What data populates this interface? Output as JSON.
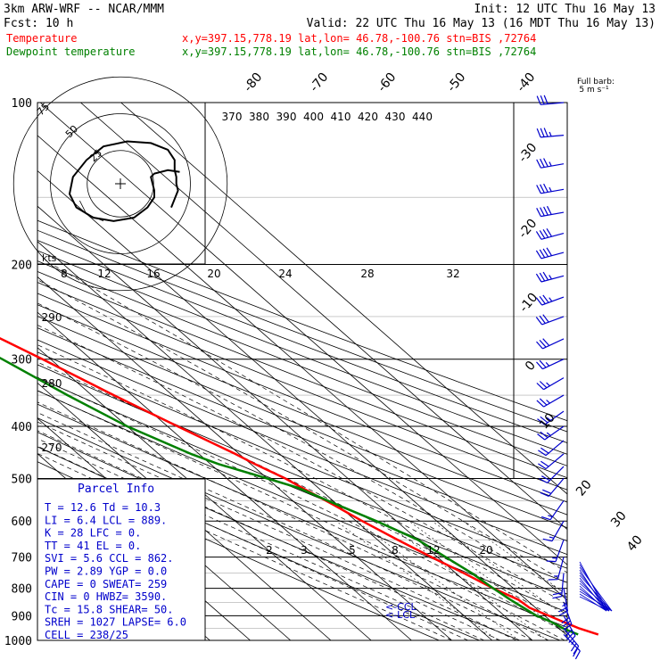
{
  "header": {
    "model": "3km ARW-WRF -- NCAR/MMM",
    "init": "Init: 12 UTC Thu 16 May 13",
    "fcst": "Fcst:    10 h",
    "valid": "Valid: 22 UTC Thu 16 May 13 (16 MDT Thu 16 May 13)",
    "lines": [
      {
        "name": "Temperature",
        "coords": "x,y=397.15,778.19   lat,lon= 46.78,-100.76   stn=BIS ,72764",
        "color": "#ff0000"
      },
      {
        "name": "Dewpoint temperature",
        "coords": "x,y=397.15,778.19   lat,lon= 46.78,-100.76   stn=BIS ,72764",
        "color": "#008000"
      }
    ]
  },
  "wind_barb_label": [
    "Full barb:",
    "5 m s⁻¹"
  ],
  "hodograph": {
    "ring_labels": [
      "75",
      "50",
      "25"
    ],
    "units": "kts",
    "path_uv": [
      [
        17.5,
        3.5
      ],
      [
        14,
        4
      ],
      [
        10,
        3
      ],
      [
        9,
        2
      ],
      [
        9.5,
        0
      ],
      [
        10,
        -2
      ],
      [
        10,
        -4
      ],
      [
        8,
        -7
      ],
      [
        4,
        -10
      ],
      [
        -2,
        -11
      ],
      [
        -8,
        -10
      ],
      [
        -13,
        -7
      ],
      [
        -15,
        -3
      ],
      [
        -14,
        2
      ],
      [
        -10,
        7
      ],
      [
        -5,
        11
      ],
      [
        2,
        12.5
      ],
      [
        9,
        12
      ],
      [
        14,
        10
      ],
      [
        16,
        7
      ],
      [
        16,
        4
      ],
      [
        16.5,
        2
      ],
      [
        16.5,
        0
      ],
      [
        17,
        -2
      ],
      [
        15,
        -7
      ]
    ],
    "inner_path_uv": [
      [
        -12,
        -5
      ],
      [
        -10,
        -9
      ],
      [
        -5,
        -11
      ]
    ]
  },
  "parcel_info": {
    "title": "Parcel Info",
    "rows": [
      [
        "T  =   12.6 Td =  10.3"
      ],
      [
        "LI =    6.4 LCL =  889."
      ],
      [
        "K  =     28 LFC =    0."
      ],
      [
        "TT =     41 EL  =    0."
      ],
      [
        "SVI =   5.6 CCL =  862."
      ],
      [
        "PW =   2.89 YGP =   0.0"
      ],
      [
        "CAPE =    0 SWEAT=  259"
      ],
      [
        "CIN  =    0 HWBZ= 3590."
      ],
      [
        "Tc  =  15.8 SHEAR=  50."
      ],
      [
        "SREH = 1027 LAPSE=  6.0"
      ],
      [
        "CELL = 238/25"
      ]
    ]
  },
  "annotations": {
    "ccl": "<-CCL",
    "lcl": "<-LCL"
  },
  "chart_data": {
    "type": "skew-t log-p sounding",
    "yaxis": "pressure (hPa), logarithmic",
    "ylim": [
      1000,
      100
    ],
    "pressure_labels": [
      "100",
      "200",
      "300",
      "400",
      "500",
      "600",
      "700",
      "800",
      "900",
      "1000"
    ],
    "isotherm_labels": [
      "-80",
      "-70",
      "-60",
      "-50",
      "-40",
      "-30",
      "-20",
      "-10",
      "0",
      "10",
      "20",
      "30",
      "40"
    ],
    "theta_labels": [
      "370",
      "380",
      "390",
      "400",
      "410",
      "420",
      "430",
      "440"
    ],
    "theta_left_labels": [
      "290",
      "280",
      "270"
    ],
    "mixing_ratio_labels_top": [
      "8",
      "12",
      "16",
      "20",
      "24",
      "28",
      "32"
    ],
    "mixing_ratio_labels_bottom": [
      "2",
      "3",
      "5",
      "8",
      "12",
      "20"
    ],
    "series": [
      {
        "name": "Temperature",
        "p": [
          975,
          950,
          925,
          900,
          870,
          840,
          800,
          750,
          700,
          650,
          600,
          560,
          520,
          500,
          470,
          450,
          400,
          350,
          300,
          260,
          230,
          200,
          160,
          140,
          120,
          108,
          100
        ],
        "t": [
          18,
          15,
          13,
          11,
          8.5,
          8,
          5,
          2,
          -1.5,
          -5,
          -8.5,
          -11,
          -14,
          -15.5,
          -19,
          -21,
          -27.5,
          -34.5,
          -42,
          -49.5,
          -55,
          -56,
          -58,
          -52,
          -47,
          -43,
          -41
        ]
      },
      {
        "name": "Dewpoint temperature",
        "p": [
          975,
          950,
          925,
          900,
          870,
          840,
          800,
          750,
          700,
          650,
          600,
          560,
          520,
          500,
          470,
          450,
          400,
          350,
          300,
          260,
          230,
          200,
          160,
          140,
          120,
          110,
          100
        ],
        "t": [
          13,
          11,
          10,
          8,
          7,
          6,
          5,
          4,
          2,
          0,
          -5,
          -10,
          -15,
          -20,
          -28,
          -32,
          -40,
          -46,
          -52,
          -58,
          -62,
          -66,
          -68,
          -66,
          -63,
          -62,
          -60
        ]
      }
    ],
    "winds": [
      {
        "p": 100,
        "spd": 30,
        "dir": 265
      },
      {
        "p": 115,
        "spd": 35,
        "dir": 265
      },
      {
        "p": 130,
        "spd": 35,
        "dir": 260
      },
      {
        "p": 145,
        "spd": 35,
        "dir": 260
      },
      {
        "p": 160,
        "spd": 40,
        "dir": 260
      },
      {
        "p": 175,
        "spd": 40,
        "dir": 255
      },
      {
        "p": 190,
        "spd": 40,
        "dir": 255
      },
      {
        "p": 210,
        "spd": 35,
        "dir": 255
      },
      {
        "p": 230,
        "spd": 35,
        "dir": 250
      },
      {
        "p": 250,
        "spd": 30,
        "dir": 250
      },
      {
        "p": 275,
        "spd": 30,
        "dir": 245
      },
      {
        "p": 300,
        "spd": 25,
        "dir": 245
      },
      {
        "p": 325,
        "spd": 25,
        "dir": 240
      },
      {
        "p": 350,
        "spd": 25,
        "dir": 240
      },
      {
        "p": 375,
        "spd": 25,
        "dir": 235
      },
      {
        "p": 400,
        "spd": 25,
        "dir": 235
      },
      {
        "p": 425,
        "spd": 20,
        "dir": 230
      },
      {
        "p": 450,
        "spd": 20,
        "dir": 230
      },
      {
        "p": 475,
        "spd": 20,
        "dir": 225
      },
      {
        "p": 500,
        "spd": 20,
        "dir": 220
      },
      {
        "p": 550,
        "spd": 15,
        "dir": 215
      },
      {
        "p": 600,
        "spd": 15,
        "dir": 210
      },
      {
        "p": 650,
        "spd": 15,
        "dir": 200
      },
      {
        "p": 700,
        "spd": 15,
        "dir": 195
      },
      {
        "p": 750,
        "spd": 20,
        "dir": 185
      },
      {
        "p": 800,
        "spd": 25,
        "dir": 170
      },
      {
        "p": 850,
        "spd": 30,
        "dir": 160
      },
      {
        "p": 900,
        "spd": 30,
        "dir": 150
      },
      {
        "p": 950,
        "spd": 25,
        "dir": 140
      },
      {
        "p": 975,
        "spd": 20,
        "dir": 135
      }
    ]
  }
}
